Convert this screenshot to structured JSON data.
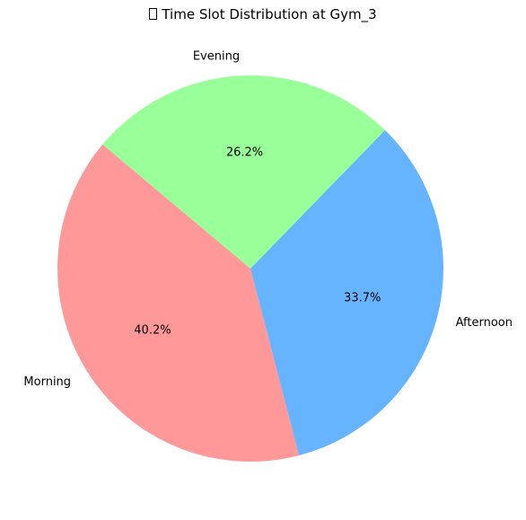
{
  "chart_data": {
    "type": "pie",
    "title": "Time Slot Distribution at Gym_3",
    "title_icon": "missing-glyph-icon",
    "slices": [
      {
        "label": "Morning",
        "percent": 40.2,
        "display": "40.2%",
        "color": "#ff9999"
      },
      {
        "label": "Afternoon",
        "percent": 33.7,
        "display": "33.7%",
        "color": "#66b3ff"
      },
      {
        "label": "Evening",
        "percent": 26.2,
        "display": "26.2%",
        "color": "#99ff99"
      }
    ],
    "start_angle_deg": 140,
    "direction": "counterclockwise",
    "legend": false
  }
}
